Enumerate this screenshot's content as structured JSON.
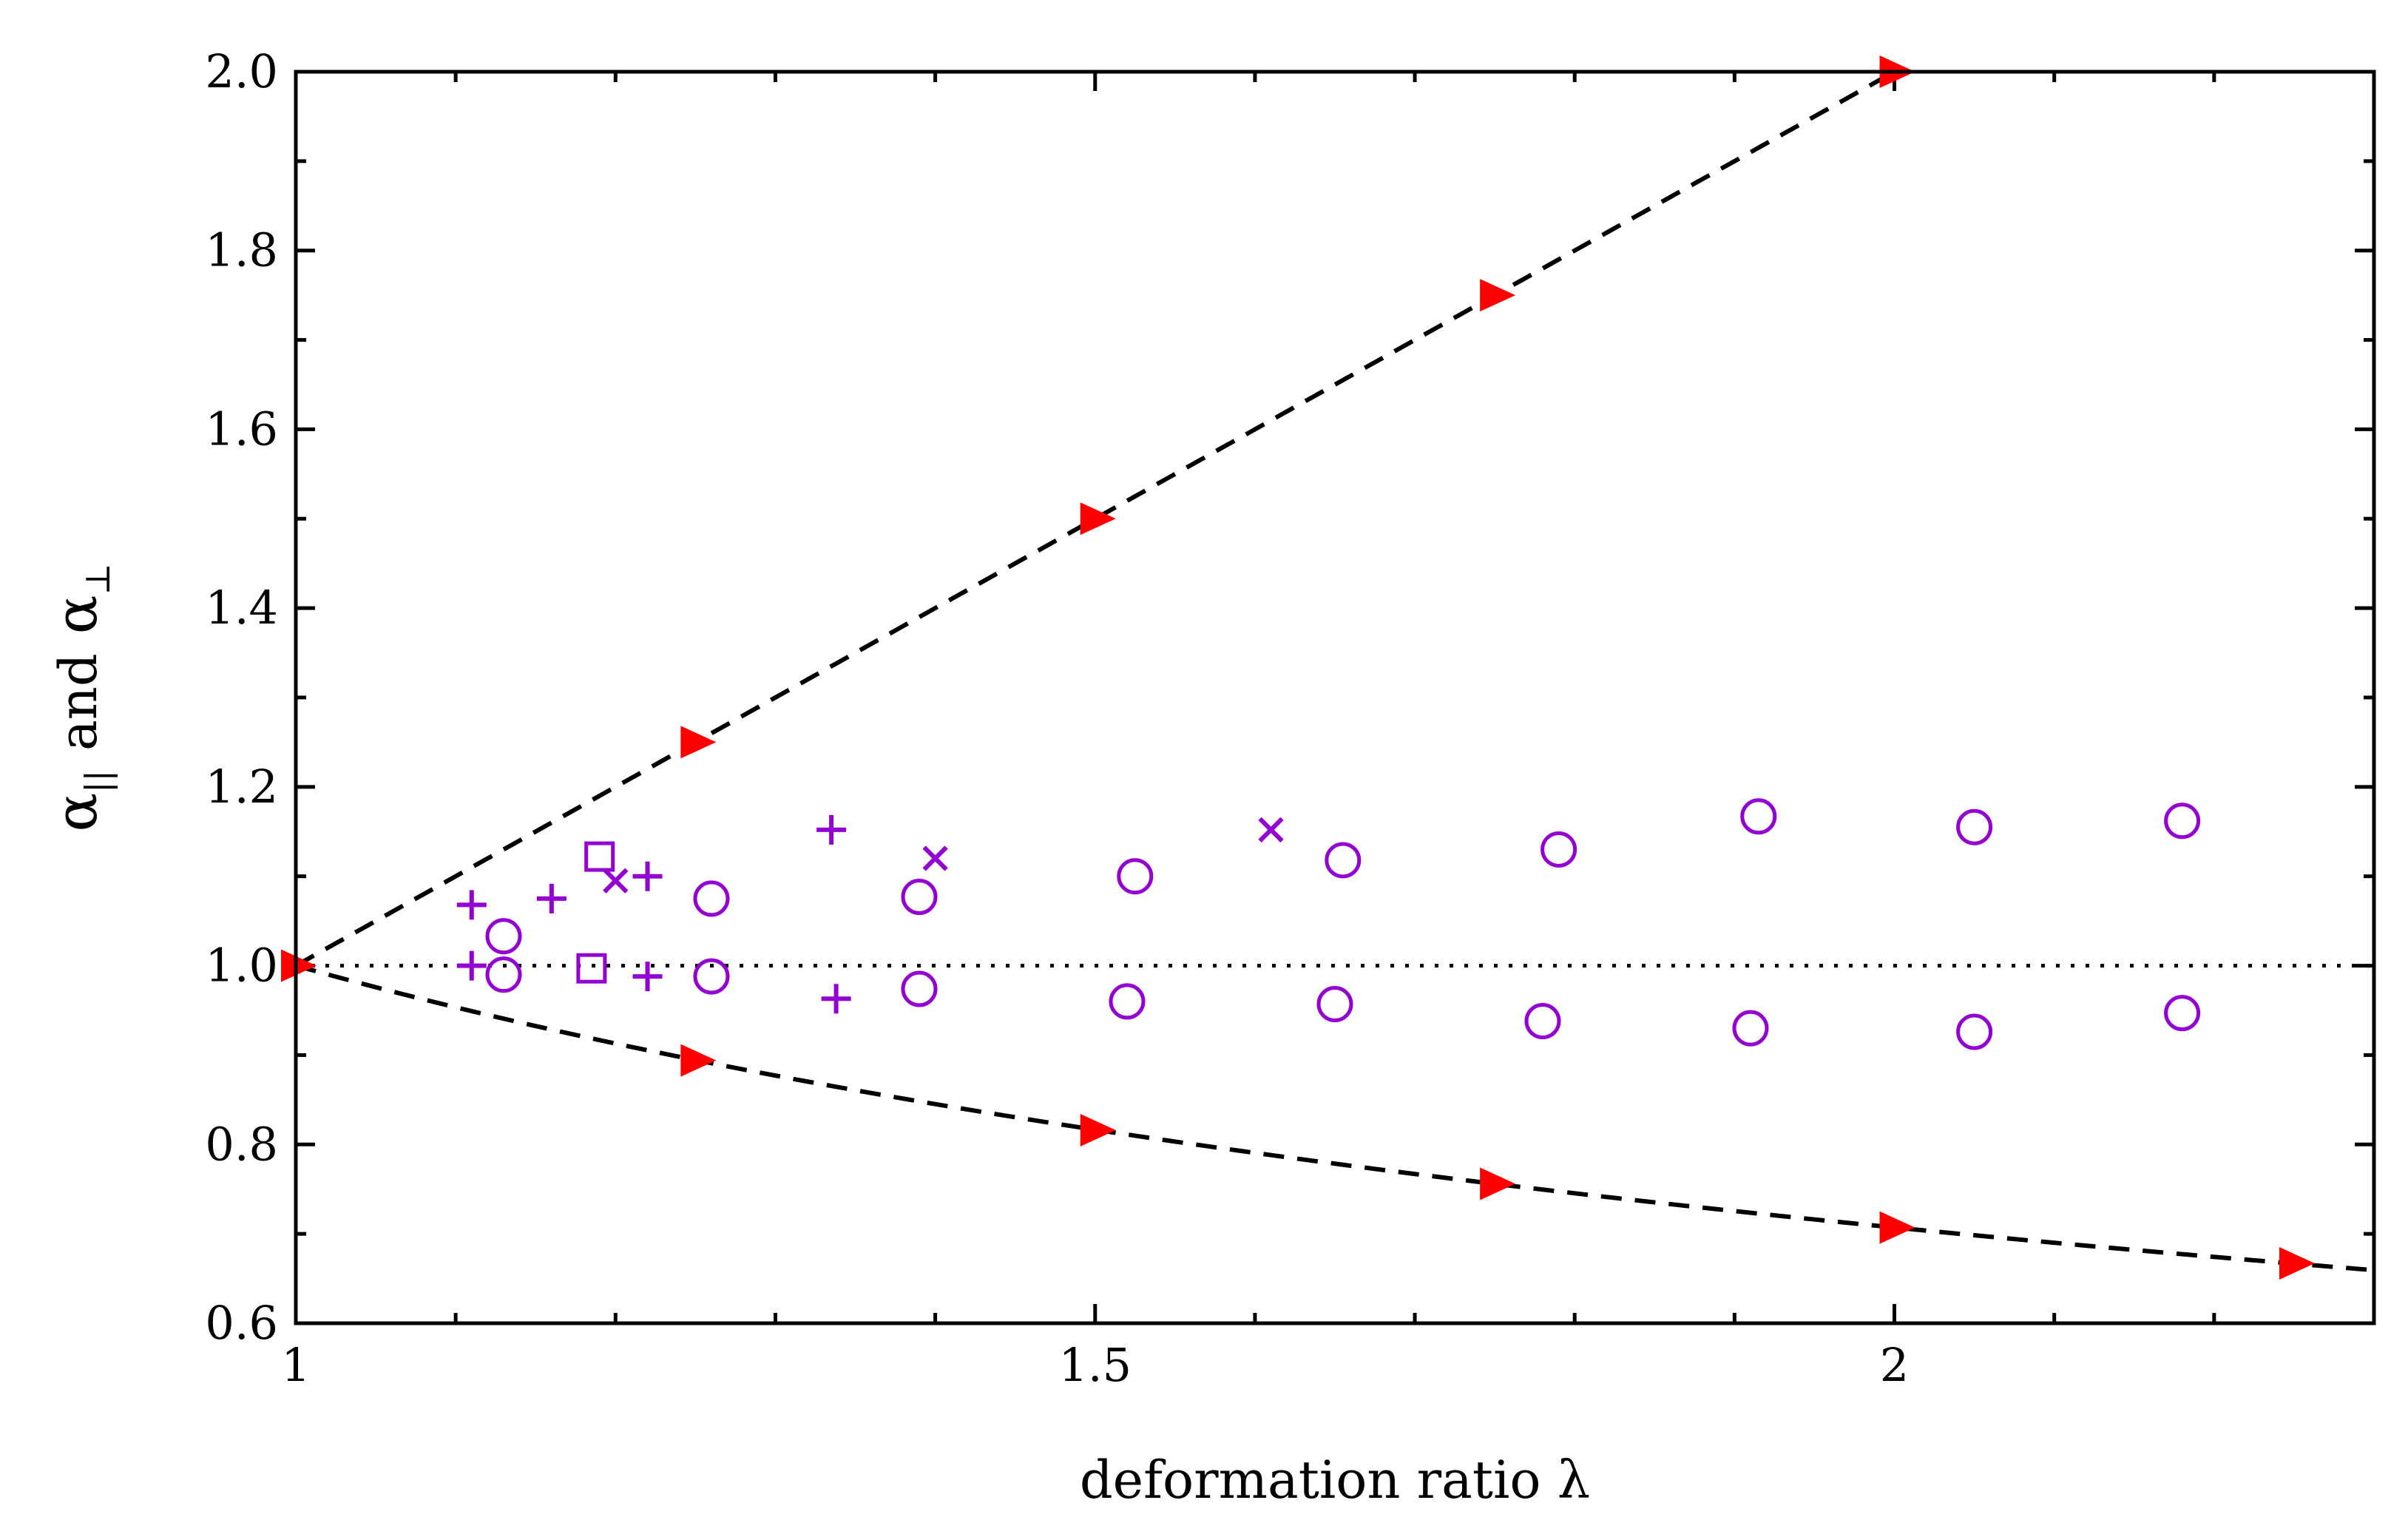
{
  "chart_data": {
    "type": "scatter",
    "title": "",
    "xlabel": "deformation ratio λ",
    "ylabel_parts": {
      "sym1": "α",
      "sub1": "||",
      "mid": "and",
      "sym2": "α",
      "sub2": "⊥"
    },
    "xlim": [
      1.0,
      2.3
    ],
    "ylim": [
      0.6,
      2.0
    ],
    "x_major_ticks": [
      1,
      1.5,
      2
    ],
    "x_tick_labels": [
      "1",
      "1.5",
      "2"
    ],
    "x_minor_ticks": [
      1.1,
      1.2,
      1.3,
      1.4,
      1.6,
      1.7,
      1.8,
      1.9,
      2.1,
      2.2
    ],
    "y_ticks": [
      0.6,
      0.8,
      1.0,
      1.2,
      1.4,
      1.6,
      1.8,
      2.0
    ],
    "y_tick_labels": [
      "0.6",
      "0.8",
      "1.0",
      "1.2",
      "1.4",
      "1.6",
      "1.8",
      "2.0"
    ],
    "y_minor_ticks": [
      0.7,
      0.9,
      1.1,
      1.3,
      1.5,
      1.7,
      1.9
    ],
    "colors": {
      "axis": "#000000",
      "affine": "#ff0000",
      "series": "#9400d3",
      "line": "#000000"
    },
    "reference_lines": [
      {
        "name": "affine-parallel",
        "style": "dashed",
        "equation": "α = λ"
      },
      {
        "name": "affine-perpendicular",
        "style": "dashed",
        "equation": "α = 1/√λ"
      },
      {
        "name": "unity",
        "style": "dotted",
        "equation": "α = 1"
      }
    ],
    "series": [
      {
        "name": "affine",
        "marker": "filled-right-triangle",
        "color": "#ff0000",
        "x": [
          1.0,
          1.25,
          1.5,
          1.75,
          2.0,
          1.25,
          1.5,
          1.75,
          2.0,
          2.25
        ],
        "y": [
          1.0,
          1.25,
          1.5,
          1.75,
          2.0,
          0.894,
          0.816,
          0.756,
          0.707,
          0.667
        ]
      },
      {
        "name": "circle",
        "marker": "open-circle",
        "color": "#9400d3",
        "x": [
          1.13,
          1.26,
          1.39,
          1.525,
          1.655,
          1.79,
          1.915,
          2.05,
          2.18,
          1.13,
          1.26,
          1.39,
          1.52,
          1.65,
          1.78,
          1.91,
          2.05,
          2.18
        ],
        "y": [
          1.033,
          1.075,
          1.077,
          1.1,
          1.118,
          1.13,
          1.167,
          1.155,
          1.162,
          0.99,
          0.988,
          0.974,
          0.96,
          0.957,
          0.938,
          0.93,
          0.926,
          0.947
        ]
      },
      {
        "name": "plus",
        "marker": "plus",
        "color": "#9400d3",
        "x": [
          1.11,
          1.16,
          1.22,
          1.335,
          1.11,
          1.22,
          1.338
        ],
        "y": [
          1.068,
          1.075,
          1.1,
          1.152,
          1.0,
          0.988,
          0.963
        ]
      },
      {
        "name": "cross",
        "marker": "x",
        "color": "#9400d3",
        "x": [
          1.2,
          1.4,
          1.61
        ],
        "y": [
          1.095,
          1.12,
          1.152
        ]
      },
      {
        "name": "square",
        "marker": "open-square",
        "color": "#9400d3",
        "x": [
          1.19,
          1.185
        ],
        "y": [
          1.122,
          0.997
        ]
      }
    ]
  }
}
